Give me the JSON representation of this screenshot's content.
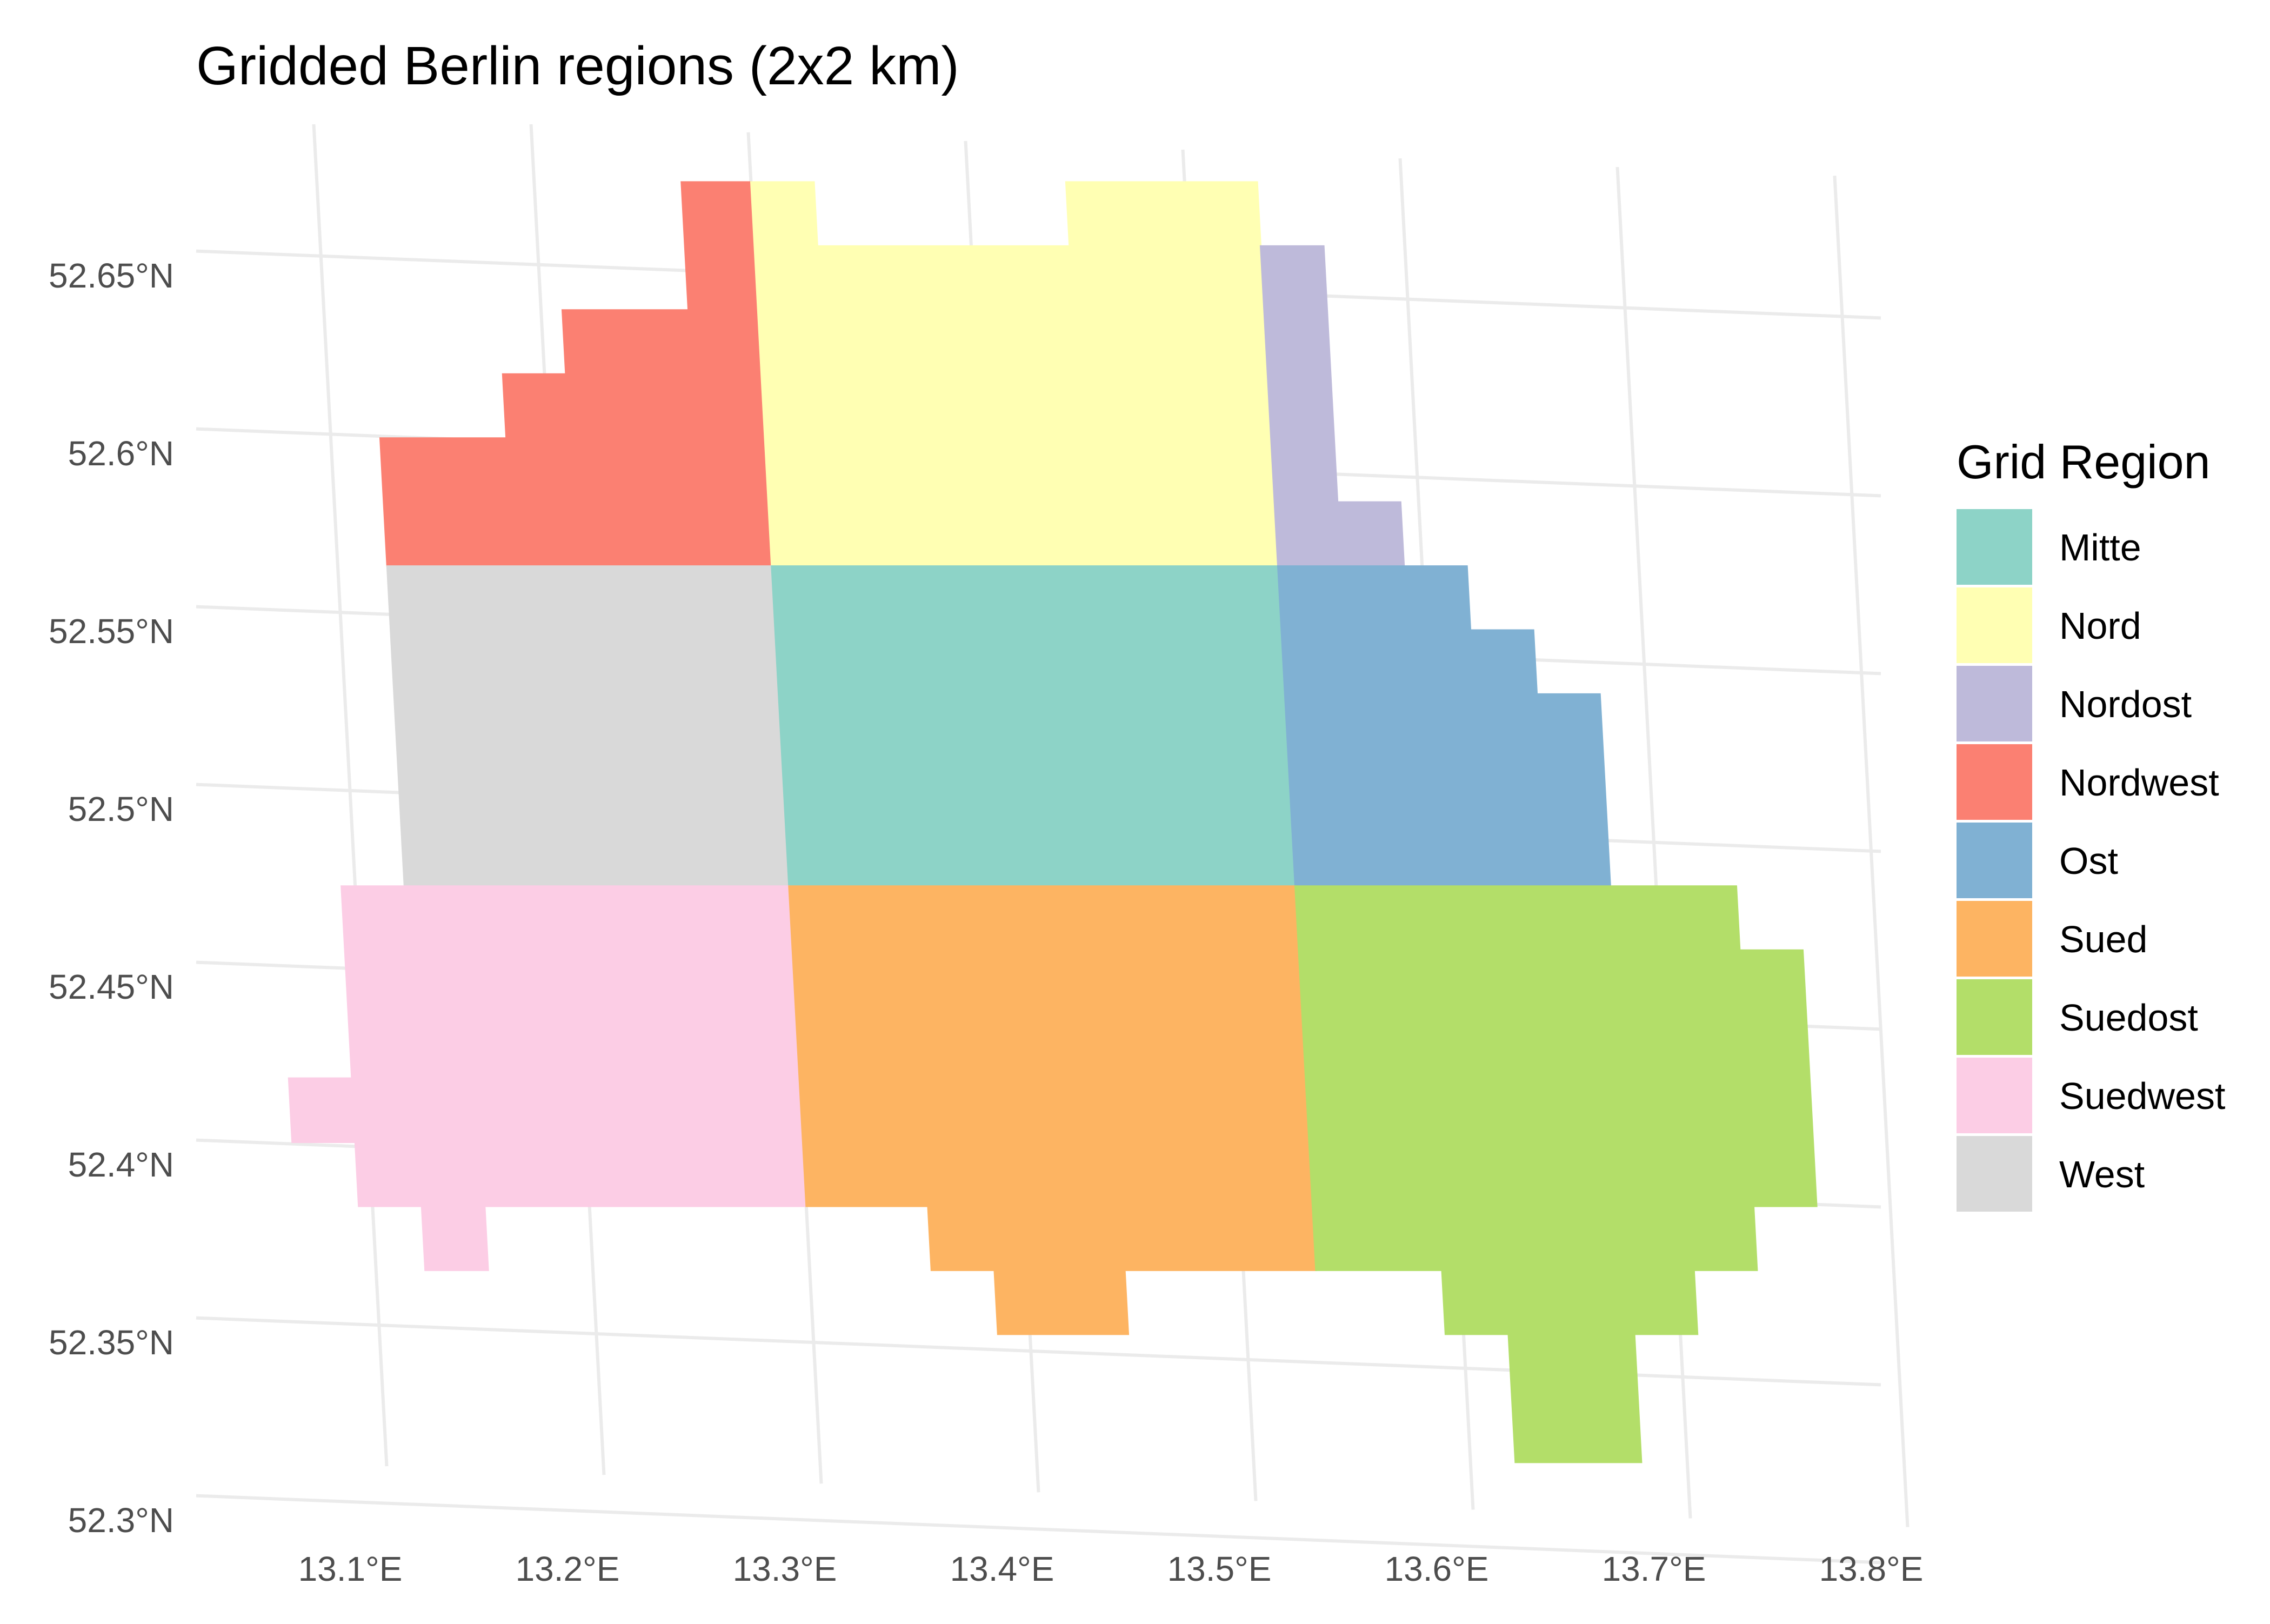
{
  "title": "Gridded Berlin regions (2x2 km)",
  "chart_data": {
    "type": "heatmap",
    "title": "Gridded Berlin regions (2x2 km)",
    "xlabel": "",
    "ylabel": "",
    "x_ticks": [
      "13.1°E",
      "13.2°E",
      "13.3°E",
      "13.4°E",
      "13.5°E",
      "13.6°E",
      "13.7°E",
      "13.8°E"
    ],
    "y_ticks": [
      "52.65°N",
      "52.6°N",
      "52.55°N",
      "52.5°N",
      "52.45°N",
      "52.4°N",
      "52.35°N",
      "52.3°N"
    ],
    "xlim": [
      13.03,
      13.8
    ],
    "ylim": [
      52.3,
      52.69
    ],
    "grid": true,
    "legend": {
      "title": "Grid Region",
      "placement": "right",
      "entries": [
        {
          "name": "Mitte",
          "color": "#8DD3C7"
        },
        {
          "name": "Nord",
          "color": "#FFFFB3"
        },
        {
          "name": "Nordost",
          "color": "#BEBADA"
        },
        {
          "name": "Nordwest",
          "color": "#FB8072"
        },
        {
          "name": "Ost",
          "color": "#80B1D3"
        },
        {
          "name": "Sued",
          "color": "#FDB462"
        },
        {
          "name": "Suedost",
          "color": "#B3DE69"
        },
        {
          "name": "Suedwest",
          "color": "#FCCDE5"
        },
        {
          "name": "West",
          "color": "#D9D9D9"
        }
      ]
    },
    "regions": [
      {
        "name": "Nordwest",
        "polygon": [
          [
            13.123,
            52.568
          ],
          [
            13.123,
            52.604
          ],
          [
            13.181,
            52.604
          ],
          [
            13.181,
            52.622
          ],
          [
            13.21,
            52.622
          ],
          [
            13.21,
            52.64
          ],
          [
            13.268,
            52.64
          ],
          [
            13.268,
            52.676
          ],
          [
            13.3,
            52.676
          ],
          [
            13.3,
            52.568
          ]
        ]
      },
      {
        "name": "Nord",
        "polygon": [
          [
            13.3,
            52.568
          ],
          [
            13.3,
            52.676
          ],
          [
            13.329,
            52.676
          ],
          [
            13.329,
            52.658
          ],
          [
            13.445,
            52.658
          ],
          [
            13.445,
            52.676
          ],
          [
            13.533,
            52.676
          ],
          [
            13.533,
            52.568
          ]
        ]
      },
      {
        "name": "Nordost",
        "polygon": [
          [
            13.533,
            52.568
          ],
          [
            13.533,
            52.658
          ],
          [
            13.562,
            52.658
          ],
          [
            13.562,
            52.586
          ],
          [
            13.591,
            52.586
          ],
          [
            13.591,
            52.568
          ]
        ]
      },
      {
        "name": "West",
        "polygon": [
          [
            13.123,
            52.478
          ],
          [
            13.123,
            52.568
          ],
          [
            13.3,
            52.568
          ],
          [
            13.3,
            52.478
          ]
        ]
      },
      {
        "name": "Mitte",
        "polygon": [
          [
            13.3,
            52.478
          ],
          [
            13.3,
            52.568
          ],
          [
            13.533,
            52.568
          ],
          [
            13.533,
            52.478
          ]
        ]
      },
      {
        "name": "Ost",
        "polygon": [
          [
            13.533,
            52.478
          ],
          [
            13.533,
            52.568
          ],
          [
            13.62,
            52.568
          ],
          [
            13.62,
            52.55
          ],
          [
            13.649,
            52.55
          ],
          [
            13.649,
            52.532
          ],
          [
            13.678,
            52.532
          ],
          [
            13.678,
            52.478
          ]
        ]
      },
      {
        "name": "Suedwest",
        "polygon": [
          [
            13.094,
            52.478
          ],
          [
            13.094,
            52.424
          ],
          [
            13.065,
            52.424
          ],
          [
            13.065,
            52.406
          ],
          [
            13.094,
            52.406
          ],
          [
            13.094,
            52.388
          ],
          [
            13.123,
            52.388
          ],
          [
            13.123,
            52.37
          ],
          [
            13.152,
            52.37
          ],
          [
            13.152,
            52.388
          ],
          [
            13.3,
            52.388
          ],
          [
            13.3,
            52.478
          ]
        ]
      },
      {
        "name": "Sued",
        "polygon": [
          [
            13.3,
            52.478
          ],
          [
            13.3,
            52.388
          ],
          [
            13.356,
            52.388
          ],
          [
            13.356,
            52.37
          ],
          [
            13.385,
            52.37
          ],
          [
            13.385,
            52.352
          ],
          [
            13.445,
            52.352
          ],
          [
            13.445,
            52.37
          ],
          [
            13.533,
            52.37
          ],
          [
            13.533,
            52.478
          ]
        ]
      },
      {
        "name": "Suedost",
        "polygon": [
          [
            13.533,
            52.478
          ],
          [
            13.533,
            52.37
          ],
          [
            13.591,
            52.37
          ],
          [
            13.591,
            52.352
          ],
          [
            13.62,
            52.352
          ],
          [
            13.62,
            52.316
          ],
          [
            13.678,
            52.316
          ],
          [
            13.678,
            52.352
          ],
          [
            13.707,
            52.352
          ],
          [
            13.707,
            52.37
          ],
          [
            13.736,
            52.37
          ],
          [
            13.736,
            52.388
          ],
          [
            13.765,
            52.388
          ],
          [
            13.765,
            52.46
          ],
          [
            13.736,
            52.46
          ],
          [
            13.736,
            52.478
          ]
        ]
      }
    ]
  }
}
